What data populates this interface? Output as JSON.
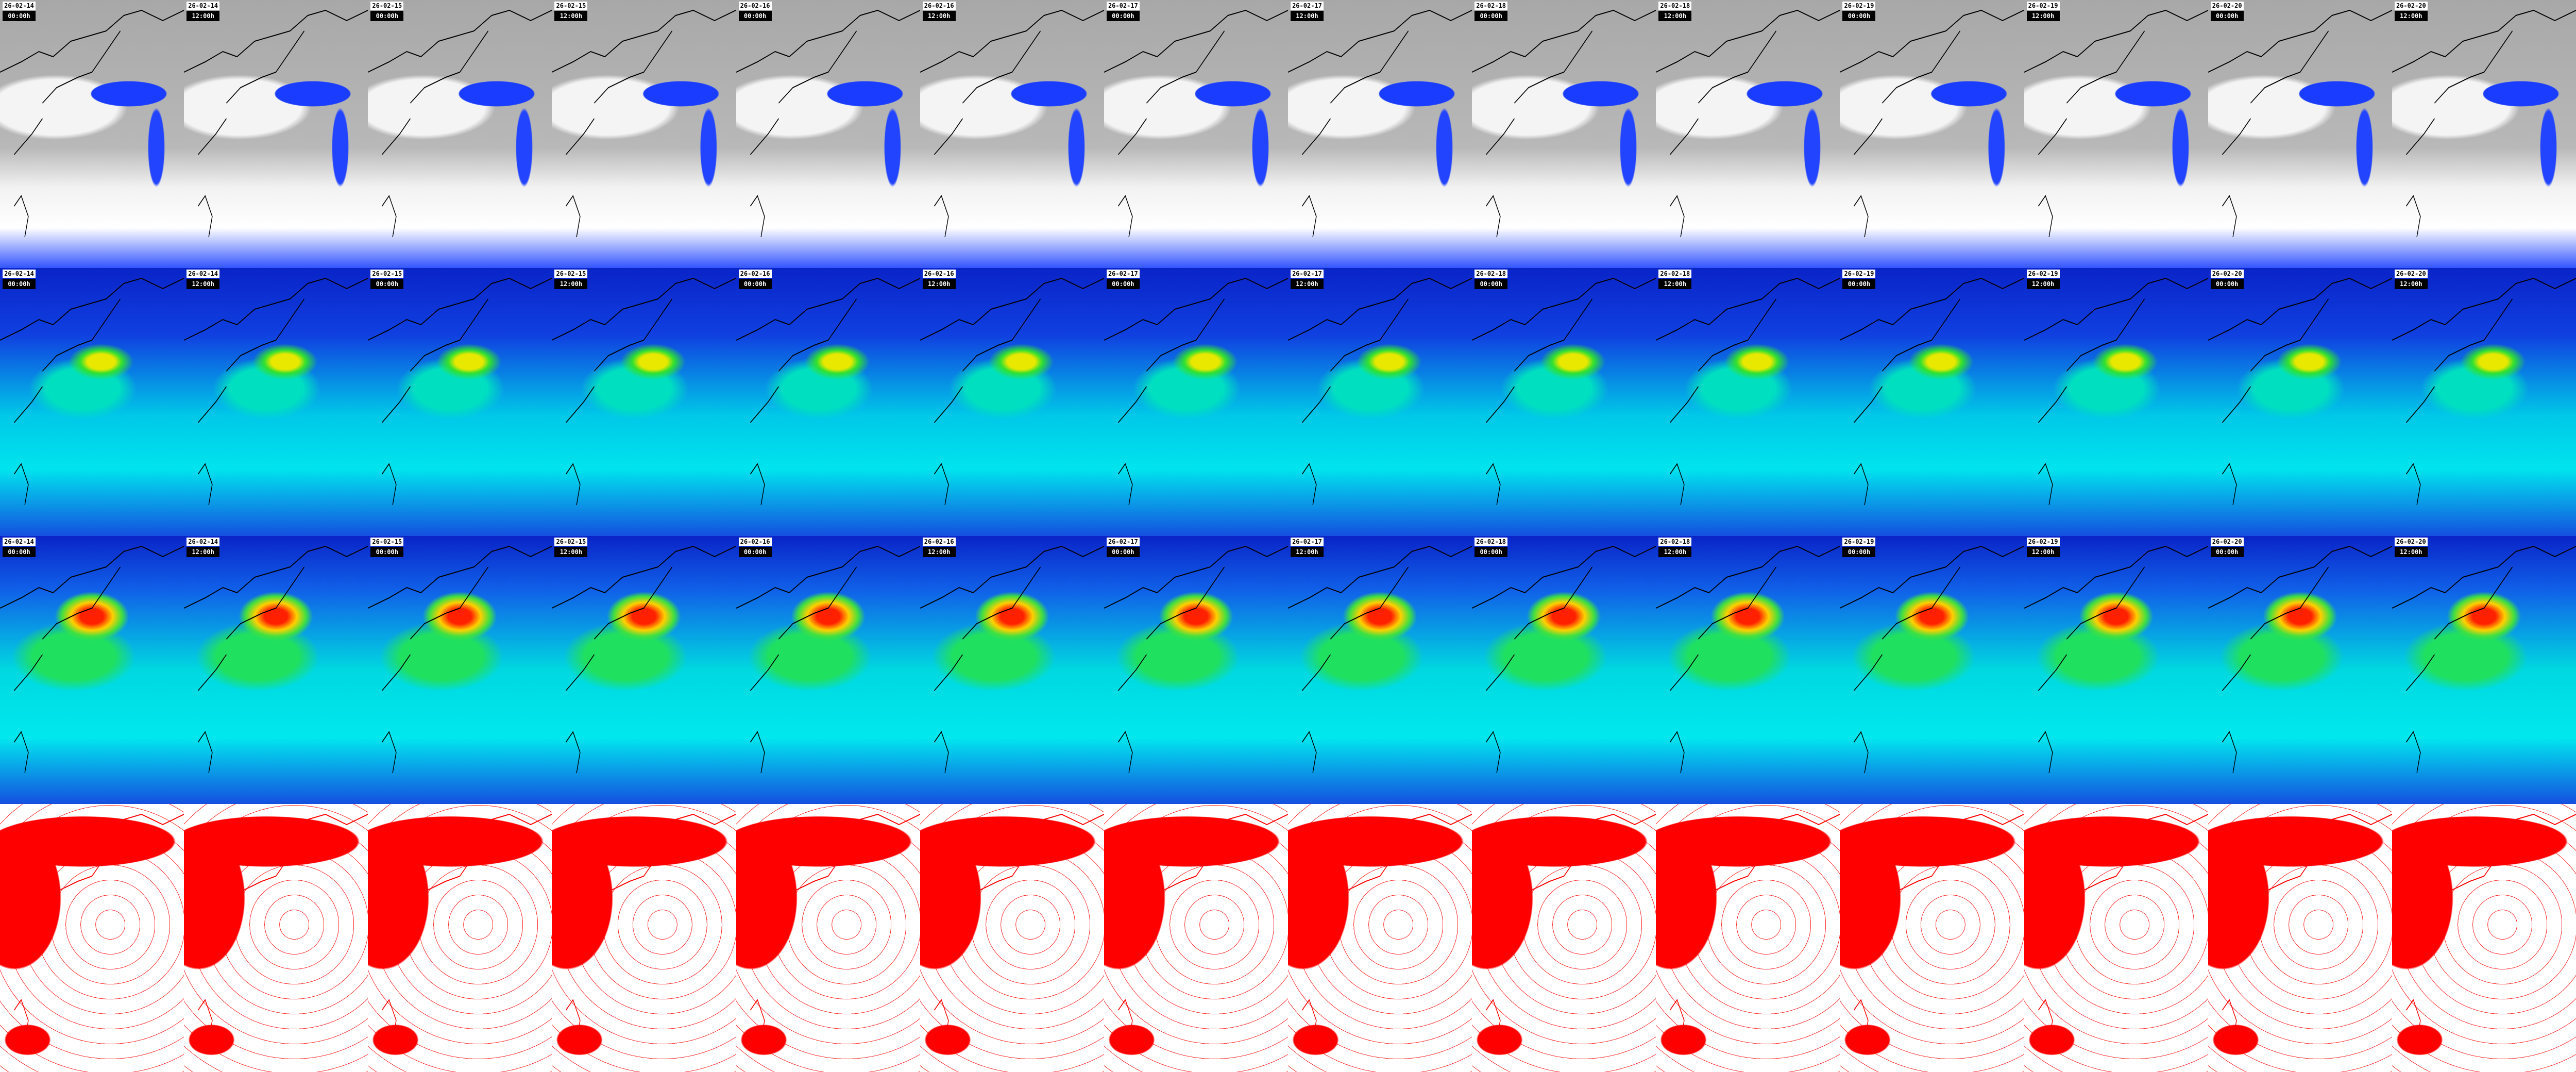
{
  "rows": [
    {
      "product": "cloud-precipitation",
      "labeled": true
    },
    {
      "product": "wind-speed-low",
      "labeled": true
    },
    {
      "product": "wind-speed-high",
      "labeled": true
    },
    {
      "product": "mslp-isobars",
      "labeled": false
    }
  ],
  "frames": [
    {
      "date": "26-02-14",
      "time": "00:00h"
    },
    {
      "date": "26-02-14",
      "time": "12:00h"
    },
    {
      "date": "26-02-15",
      "time": "00:00h"
    },
    {
      "date": "26-02-15",
      "time": "12:00h"
    },
    {
      "date": "26-02-16",
      "time": "00:00h"
    },
    {
      "date": "26-02-16",
      "time": "12:00h"
    },
    {
      "date": "26-02-17",
      "time": "00:00h"
    },
    {
      "date": "26-02-17",
      "time": "12:00h"
    },
    {
      "date": "26-02-18",
      "time": "00:00h"
    },
    {
      "date": "26-02-18",
      "time": "12:00h"
    },
    {
      "date": "26-02-19",
      "time": "00:00h"
    },
    {
      "date": "26-02-19",
      "time": "12:00h"
    },
    {
      "date": "26-02-20",
      "time": "00:00h"
    },
    {
      "date": "26-02-20",
      "time": "12:00h"
    }
  ],
  "colors": {
    "precip": "#1a3cff",
    "wind_low": "#0a24c8",
    "wind_high": "#ff2000",
    "isobar": "#ff0000"
  }
}
